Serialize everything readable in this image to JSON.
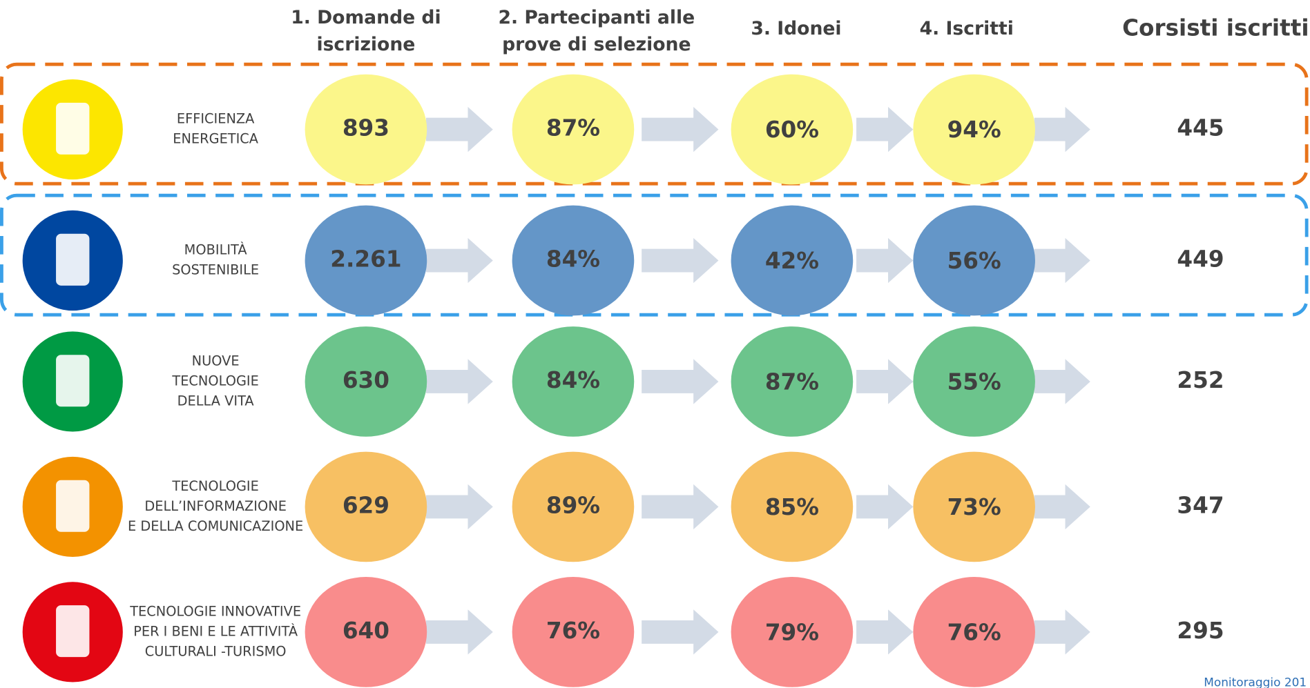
{
  "headers": [
    [
      "1. Domande di",
      "iscrizione"
    ],
    [
      "2. Partecipanti alle",
      "prove di selezione"
    ],
    [
      "3. Idonei"
    ],
    [
      "4. Iscritti"
    ],
    [
      "Corsisti iscritti"
    ]
  ],
  "rows": [
    {
      "label": [
        "EFFICIENZA",
        "ENERGETICA"
      ],
      "cells": [
        "893",
        "87%",
        "60%",
        "94%"
      ],
      "total": "445",
      "color": "#fbf68a",
      "icon_color": "#fce600",
      "box": "#e8731a"
    },
    {
      "label": [
        "MOBILITÀ",
        "SOSTENIBILE"
      ],
      "cells": [
        "2.261",
        "84%",
        "42%",
        "56%"
      ],
      "total": "449",
      "color": "#6496c8",
      "icon_color": "#0047a0",
      "box": "#3aa0e8"
    },
    {
      "label": [
        "NUOVE",
        "TECNOLOGIE",
        "DELLA VITA"
      ],
      "cells": [
        "630",
        "84%",
        "87%",
        "55%"
      ],
      "total": "252",
      "color": "#6cc48c",
      "icon_color": "#009a44"
    },
    {
      "label": [
        "TECNOLOGIE",
        "DELL’INFORMAZIONE",
        "E DELLA COMUNICAZIONE"
      ],
      "cells": [
        "629",
        "89%",
        "85%",
        "73%"
      ],
      "total": "347",
      "color": "#f7c063",
      "icon_color": "#f39200"
    },
    {
      "label": [
        "TECNOLOGIE INNOVATIVE",
        "PER I BENI E LE ATTIVITÀ",
        "CULTURALI -TURISMO"
      ],
      "cells": [
        "640",
        "76%",
        "79%",
        "76%"
      ],
      "total": "295",
      "color": "#f98c8c",
      "icon_color": "#e30613"
    }
  ],
  "footer": "Monitoraggio 201"
}
